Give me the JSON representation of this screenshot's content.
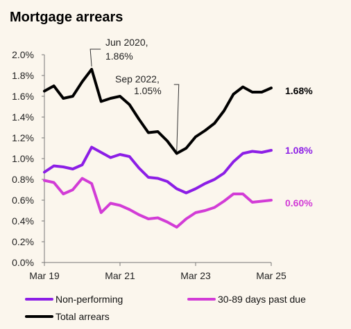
{
  "chart_data": {
    "type": "line",
    "title": "Mortgage arrears",
    "xlabel": "",
    "ylabel": "",
    "x_tick_labels": [
      "Mar 19",
      "Mar 21",
      "Mar 23",
      "Mar 25"
    ],
    "y_tick_labels": [
      "0.0%",
      "0.2%",
      "0.4%",
      "0.6%",
      "0.8%",
      "1.0%",
      "1.2%",
      "1.4%",
      "1.6%",
      "1.8%",
      "2.0%"
    ],
    "ylim": [
      0,
      2.0
    ],
    "grid": false,
    "legend_position": "bottom",
    "x": [
      "Mar 19",
      "Jun 19",
      "Sep 19",
      "Dec 19",
      "Mar 20",
      "Jun 20",
      "Sep 20",
      "Dec 20",
      "Mar 21",
      "Jun 21",
      "Sep 21",
      "Dec 21",
      "Mar 22",
      "Jun 22",
      "Sep 22",
      "Dec 22",
      "Mar 23",
      "Jun 23",
      "Sep 23",
      "Dec 23",
      "Mar 24",
      "Jun 24",
      "Sep 24",
      "Dec 24",
      "Mar 25"
    ],
    "series": [
      {
        "name": "Total arrears",
        "color": "#000000",
        "end_label": "1.68%",
        "values": [
          1.65,
          1.7,
          1.58,
          1.6,
          1.74,
          1.86,
          1.55,
          1.58,
          1.6,
          1.52,
          1.38,
          1.25,
          1.26,
          1.17,
          1.05,
          1.1,
          1.21,
          1.27,
          1.34,
          1.46,
          1.62,
          1.69,
          1.64,
          1.64,
          1.68
        ]
      },
      {
        "name": "Non-performing",
        "color": "#8c1ee6",
        "end_label": "1.08%",
        "values": [
          0.87,
          0.93,
          0.92,
          0.9,
          0.94,
          1.11,
          1.06,
          1.01,
          1.04,
          1.02,
          0.91,
          0.82,
          0.81,
          0.78,
          0.71,
          0.67,
          0.71,
          0.76,
          0.8,
          0.86,
          0.97,
          1.05,
          1.07,
          1.06,
          1.08
        ]
      },
      {
        "name": "30-89 days past due",
        "color": "#d23cd6",
        "end_label": "0.60%",
        "values": [
          0.79,
          0.77,
          0.66,
          0.7,
          0.81,
          0.76,
          0.48,
          0.57,
          0.55,
          0.51,
          0.46,
          0.42,
          0.43,
          0.39,
          0.34,
          0.42,
          0.48,
          0.5,
          0.53,
          0.59,
          0.66,
          0.66,
          0.58,
          0.59,
          0.6
        ]
      }
    ],
    "annotations": [
      {
        "text_line1": "Jun 2020,",
        "text_line2": "1.86%",
        "x": "Jun 20",
        "y": 1.86
      },
      {
        "text_line1": "Sep 2022,",
        "text_line2": "1.05%",
        "x": "Sep 22",
        "y": 1.05
      }
    ],
    "legend": [
      {
        "label": "Non-performing",
        "color": "#8c1ee6"
      },
      {
        "label": "30-89 days past due",
        "color": "#d23cd6"
      },
      {
        "label": "Total arrears",
        "color": "#000000"
      }
    ]
  }
}
